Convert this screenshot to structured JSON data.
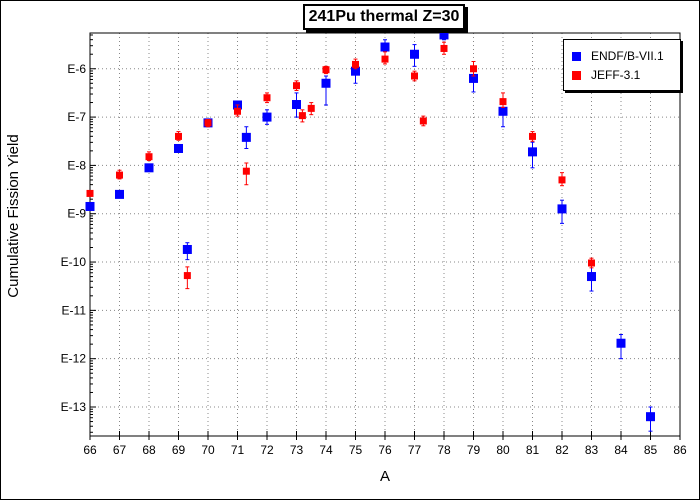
{
  "title": "241Pu thermal Z=30",
  "chart_data": {
    "type": "scatter",
    "title": "241Pu thermal Z=30",
    "xlabel": "A",
    "ylabel": "Cumulative Fission Yield",
    "xlim": [
      66,
      86
    ],
    "x_ticks": [
      66,
      67,
      68,
      69,
      70,
      71,
      72,
      73,
      74,
      75,
      76,
      77,
      78,
      79,
      80,
      81,
      82,
      83,
      84,
      85,
      86
    ],
    "y_scale": "log",
    "ylim_exponent": [
      -13.6,
      -5.26
    ],
    "y_ticks": [
      {
        "label": "E-6",
        "exp": -6
      },
      {
        "label": "E-7",
        "exp": -7
      },
      {
        "label": "E-8",
        "exp": -8
      },
      {
        "label": "E-9",
        "exp": -9
      },
      {
        "label": "E-10",
        "exp": -10
      },
      {
        "label": "E-11",
        "exp": -11
      },
      {
        "label": "E-12",
        "exp": -12
      },
      {
        "label": "E-13",
        "exp": -13
      }
    ],
    "grid": true,
    "legend_position": "top-right",
    "series": [
      {
        "name": "ENDF/B-VII.1",
        "color": "#0000ff",
        "marker": "square",
        "points": [
          {
            "x": 66,
            "y": -8.85
          },
          {
            "x": 67,
            "y": -8.6
          },
          {
            "x": 68,
            "y": -8.05
          },
          {
            "x": 69,
            "y": -7.65
          },
          {
            "x": 69.3,
            "y": -9.74,
            "lo": -9.95,
            "hi": -9.6
          },
          {
            "x": 70,
            "y": -7.12
          },
          {
            "x": 71,
            "y": -6.75
          },
          {
            "x": 71.3,
            "y": -7.42,
            "lo": -7.65,
            "hi": -7.2
          },
          {
            "x": 72,
            "y": -7.0,
            "lo": -7.15,
            "hi": -6.85
          },
          {
            "x": 73,
            "y": -6.74,
            "lo": -7.0,
            "hi": -6.5
          },
          {
            "x": 74,
            "y": -6.3,
            "lo": -6.75,
            "hi": -6.15
          },
          {
            "x": 75,
            "y": -6.05,
            "lo": -6.3,
            "hi": -5.9
          },
          {
            "x": 76,
            "y": -5.55,
            "lo": -5.8,
            "hi": -5.4
          },
          {
            "x": 77,
            "y": -5.7,
            "lo": -5.95,
            "hi": -5.5
          },
          {
            "x": 78,
            "y": -5.3,
            "lo": -5.4,
            "hi": -5.25
          },
          {
            "x": 79,
            "y": -6.2,
            "lo": -6.48,
            "hi": -6.05
          },
          {
            "x": 80,
            "y": -6.88,
            "lo": -7.2,
            "hi": -6.7
          },
          {
            "x": 81,
            "y": -7.72,
            "lo": -8.05,
            "hi": -7.52
          },
          {
            "x": 82,
            "y": -8.9,
            "lo": -9.2,
            "hi": -8.72
          },
          {
            "x": 83,
            "y": -10.3,
            "lo": -10.6,
            "hi": -10.05
          },
          {
            "x": 84,
            "y": -11.68,
            "lo": -12.0,
            "hi": -11.5
          },
          {
            "x": 85,
            "y": -13.2,
            "lo": -13.5,
            "hi": -13.0
          }
        ]
      },
      {
        "name": "JEFF-3.1",
        "color": "#ff0000",
        "marker": "square",
        "points": [
          {
            "x": 66,
            "y": -8.58
          },
          {
            "x": 67,
            "y": -8.2,
            "lo": -8.28,
            "hi": -8.1
          },
          {
            "x": 68,
            "y": -7.82,
            "lo": -7.9,
            "hi": -7.72
          },
          {
            "x": 69,
            "y": -7.4,
            "lo": -7.48,
            "hi": -7.3
          },
          {
            "x": 69.3,
            "y": -10.28,
            "lo": -10.55,
            "hi": -10.1
          },
          {
            "x": 70,
            "y": -7.12,
            "lo": -7.2,
            "hi": -7.05
          },
          {
            "x": 71,
            "y": -6.88,
            "lo": -6.98,
            "hi": -6.75
          },
          {
            "x": 71.3,
            "y": -8.12,
            "lo": -8.4,
            "hi": -7.95
          },
          {
            "x": 72,
            "y": -6.6,
            "lo": -6.7,
            "hi": -6.5
          },
          {
            "x": 73,
            "y": -6.35,
            "lo": -6.45,
            "hi": -6.25
          },
          {
            "x": 73.2,
            "y": -6.97,
            "lo": -7.1,
            "hi": -6.85
          },
          {
            "x": 73.5,
            "y": -6.82,
            "lo": -6.95,
            "hi": -6.7
          },
          {
            "x": 74,
            "y": -6.02,
            "lo": -6.1,
            "hi": -5.95
          },
          {
            "x": 75,
            "y": -5.91,
            "lo": -6.0,
            "hi": -5.8
          },
          {
            "x": 76,
            "y": -5.8,
            "lo": -5.9,
            "hi": -5.65
          },
          {
            "x": 77,
            "y": -6.15,
            "lo": -6.25,
            "hi": -6.05
          },
          {
            "x": 77.3,
            "y": -7.08,
            "lo": -7.18,
            "hi": -6.98
          },
          {
            "x": 78,
            "y": -5.58,
            "lo": -5.7,
            "hi": -5.45
          },
          {
            "x": 79,
            "y": -6.0,
            "lo": -6.15,
            "hi": -5.85
          },
          {
            "x": 80,
            "y": -6.68,
            "lo": -6.8,
            "hi": -6.5
          },
          {
            "x": 81,
            "y": -7.4,
            "lo": -7.5,
            "hi": -7.3
          },
          {
            "x": 82,
            "y": -8.3,
            "lo": -8.42,
            "hi": -8.15
          },
          {
            "x": 83,
            "y": -10.02,
            "lo": -10.12,
            "hi": -9.92
          }
        ]
      }
    ]
  }
}
